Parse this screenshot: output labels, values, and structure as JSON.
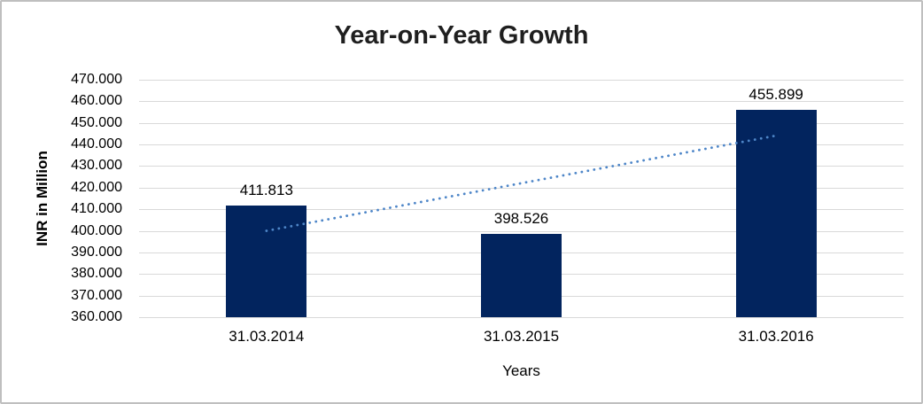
{
  "frame": {
    "background": "#ffffff",
    "border_color": "#bfbfbf"
  },
  "chart_data": {
    "type": "bar",
    "title": "Year-on-Year Growth",
    "xlabel": "Years",
    "ylabel": "INR in Million",
    "categories": [
      "31.03.2014",
      "31.03.2015",
      "31.03.2016"
    ],
    "values": [
      411.813,
      398.526,
      455.899
    ],
    "value_labels": [
      "411.813",
      "398.526",
      "455.899"
    ],
    "y_ticks": [
      "470.000",
      "460.000",
      "450.000",
      "440.000",
      "430.000",
      "420.000",
      "410.000",
      "400.000",
      "390.000",
      "380.000",
      "370.000",
      "360.000"
    ],
    "y_tick_values": [
      470,
      460,
      450,
      440,
      430,
      420,
      410,
      400,
      390,
      380,
      370,
      360
    ],
    "ylim": [
      360,
      470
    ],
    "grid": true,
    "legend": "none",
    "bar_color": "#02245e",
    "gridline_color": "#d9d9d9",
    "trendline": {
      "type": "linear",
      "style": "dotted",
      "color": "#4e86c8",
      "start_value": 400.0,
      "end_value": 444.1
    }
  }
}
